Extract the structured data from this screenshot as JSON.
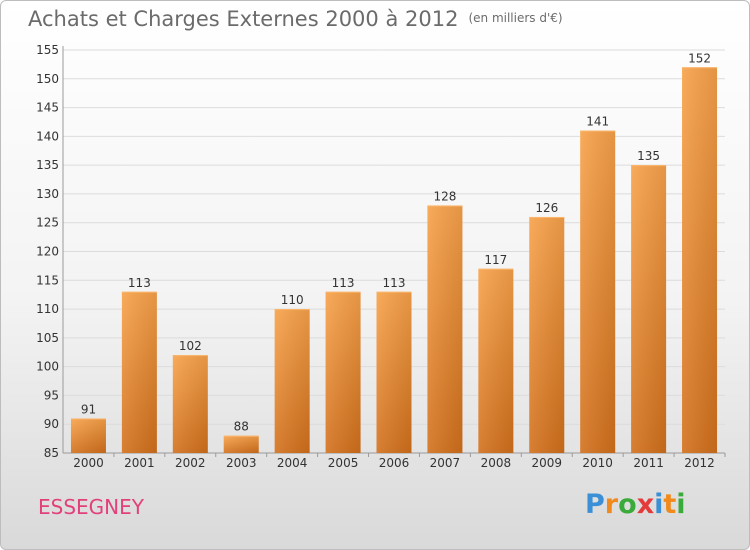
{
  "header": {
    "title": "Achats et Charges Externes 2000 à 2012",
    "subtitle": "(en milliers d'€)"
  },
  "place": "ESSEGNEY",
  "brand": {
    "letters": [
      "P",
      "r",
      "o",
      "x",
      "i",
      "t",
      "i"
    ],
    "colors": [
      "#3a8fd6",
      "#f08a1c",
      "#3aaa3a",
      "#e43a3a",
      "#3a8fd6",
      "#f08a1c",
      "#3aaa3a"
    ]
  },
  "chart_data": {
    "type": "bar",
    "title": "Achats et Charges Externes 2000 à 2012",
    "categories": [
      "2000",
      "2001",
      "2002",
      "2003",
      "2004",
      "2005",
      "2006",
      "2007",
      "2008",
      "2009",
      "2010",
      "2011",
      "2012"
    ],
    "values": [
      91,
      113,
      102,
      88,
      110,
      113,
      113,
      128,
      117,
      126,
      141,
      135,
      152
    ],
    "ylim": [
      85,
      155
    ],
    "yticks": [
      85,
      90,
      95,
      100,
      105,
      110,
      115,
      120,
      125,
      130,
      135,
      140,
      145,
      150,
      155
    ],
    "grid": true,
    "bar_color": "#f0912f"
  }
}
